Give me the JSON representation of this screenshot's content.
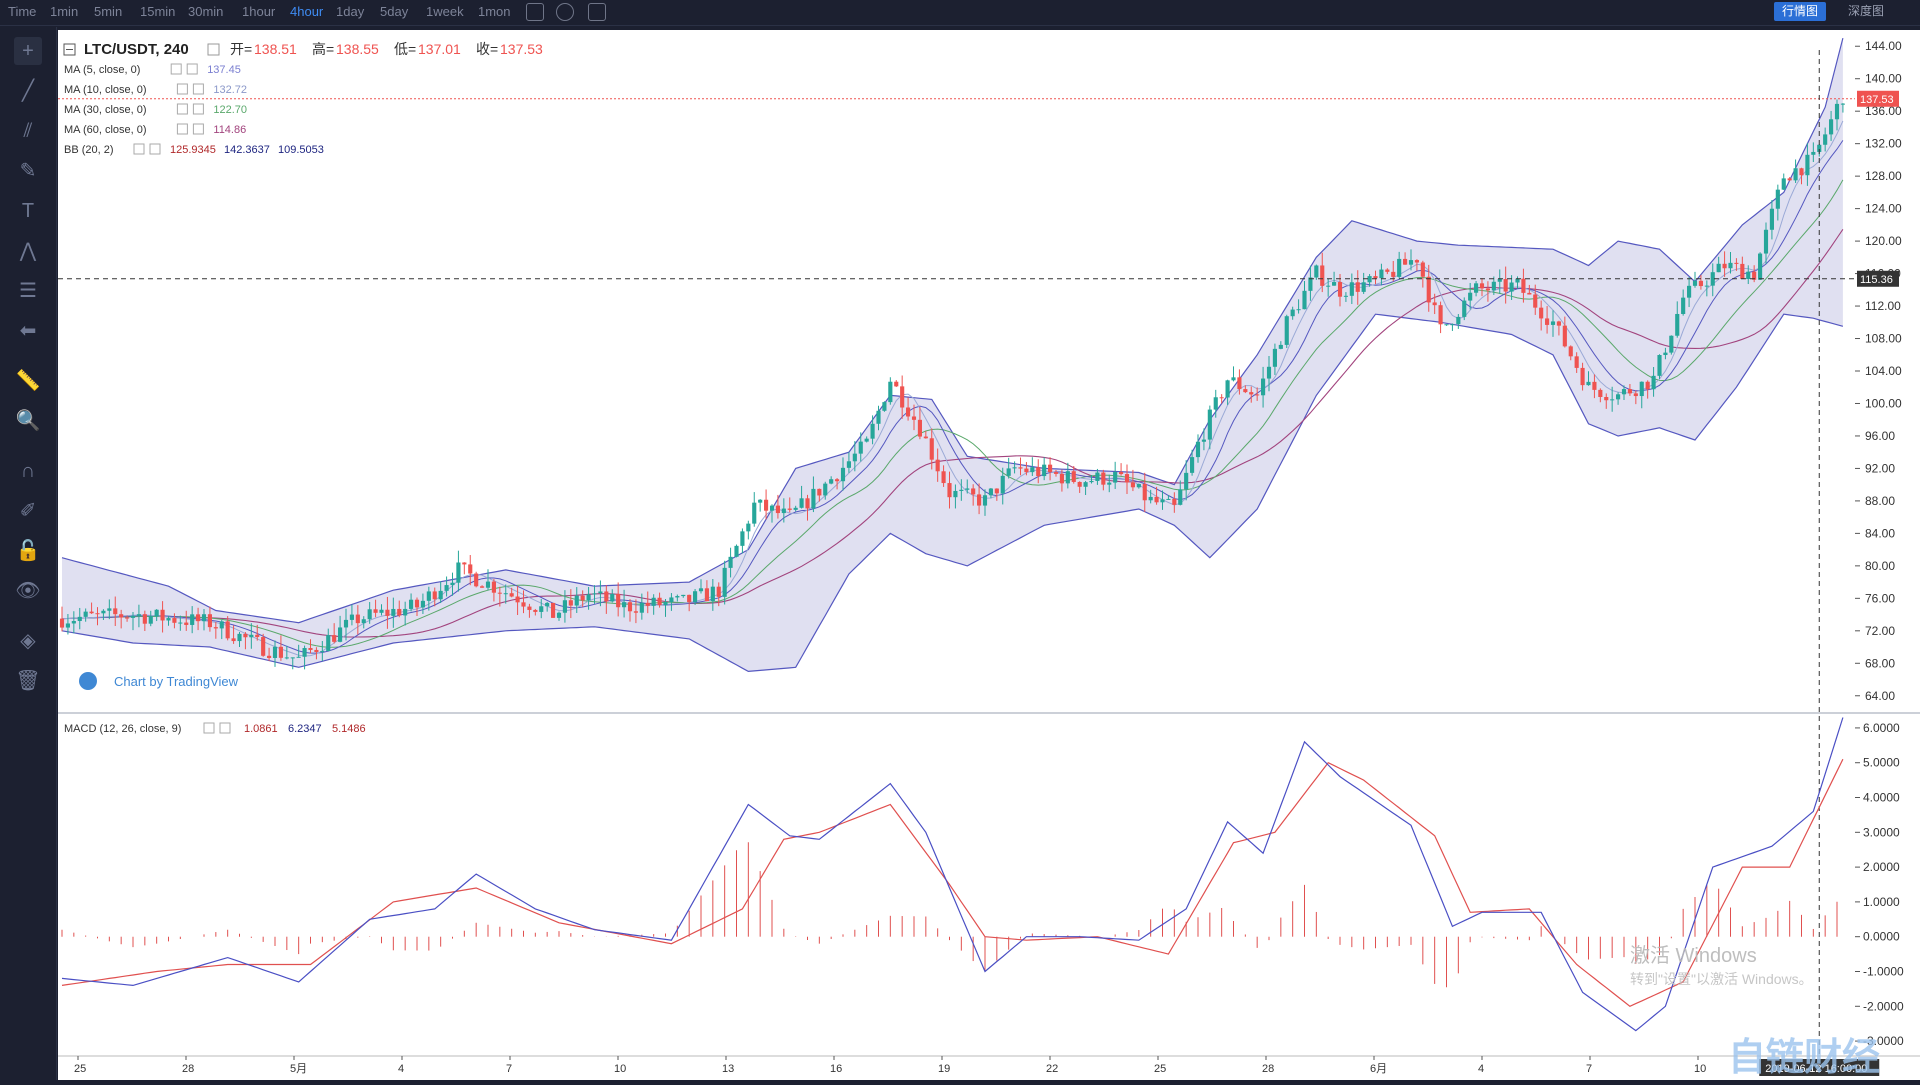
{
  "topbar": {
    "timeframes": [
      "Time",
      "1min",
      "5min",
      "15min",
      "30min",
      "1hour",
      "4hour",
      "1day",
      "5day",
      "1week",
      "1mon"
    ],
    "active_timeframe": "4hour",
    "tabs": [
      "行情图",
      "深度图"
    ],
    "active_tab": "行情图"
  },
  "sidebar": {
    "tools": [
      "crosshair-icon",
      "trend-line-icon",
      "fork-icon",
      "brush-icon",
      "text-icon",
      "pattern-icon",
      "fib-icon",
      "back-arrow-icon",
      "ruler-icon",
      "zoom-icon",
      "magnet-icon",
      "lock-draw-icon",
      "unlock-icon",
      "eye-icon",
      "layers-icon",
      "trash-icon"
    ]
  },
  "legend": {
    "symbol": "LTC/USDT, 240",
    "ohlc": [
      {
        "label": "开=",
        "value": "138.51"
      },
      {
        "label": "高=",
        "value": "138.55"
      },
      {
        "label": "低=",
        "value": "137.01"
      },
      {
        "label": "收=",
        "value": "137.53"
      }
    ],
    "indicators": [
      {
        "name": "MA (5, close, 0)",
        "values": [
          "137.45"
        ],
        "colors": [
          "#7b7fd1"
        ]
      },
      {
        "name": "MA (10, close, 0)",
        "values": [
          "132.72"
        ],
        "colors": [
          "#8b98c9"
        ]
      },
      {
        "name": "MA (30, close, 0)",
        "values": [
          "122.70"
        ],
        "colors": [
          "#5aa86b"
        ]
      },
      {
        "name": "MA (60, close, 0)",
        "values": [
          "114.86"
        ],
        "colors": [
          "#a2447e"
        ]
      },
      {
        "name": "BB (20, 2)",
        "values": [
          "125.9345",
          "142.3637",
          "109.5053"
        ],
        "colors": [
          "#b0282a",
          "#1e2580",
          "#1e2580"
        ]
      }
    ],
    "macd_name": "MACD (12, 26, close, 9)",
    "macd_values": [
      "1.0861",
      "6.2347",
      "5.1486"
    ],
    "macd_colors": [
      "#b0282a",
      "#1e2580",
      "#b0282a"
    ]
  },
  "watermark": "Chart by TradingView",
  "win_watermark": [
    "激活 Windows",
    "转到\"设置\"以激活 Windows。"
  ],
  "brand_watermark": "自链财经",
  "colors": {
    "up": "#26a69a",
    "down": "#ef5350",
    "bb_fill": "#d8d8ee",
    "bb_line": "#5558c0",
    "ma5": "#7b7fd1",
    "ma10": "#9aa9d6",
    "ma30": "#5aa86b",
    "ma60": "#a2447e",
    "macd_line": "#4a4fc4",
    "signal_line": "#e0504f",
    "hist": "#e0504f"
  },
  "chart_data": {
    "type": "candlestick",
    "title": "LTC/USDT, 240",
    "price_axis": {
      "ticks": [
        "64.00",
        "68.00",
        "72.00",
        "76.00",
        "80.00",
        "84.00",
        "88.00",
        "92.00",
        "96.00",
        "100.00",
        "104.00",
        "108.00",
        "112.00",
        "116.00",
        "120.00",
        "124.00",
        "128.00",
        "132.00",
        "136.00",
        "140.00",
        "144.00"
      ],
      "ylim": [
        62.0,
        146.0
      ],
      "last_price": "137.53",
      "crosshair_price": "115.36"
    },
    "macd_axis": {
      "ticks": [
        "-3.0000",
        "-2.0000",
        "-1.0000",
        "0.0000",
        "1.0000",
        "2.0000",
        "3.0000",
        "4.0000",
        "5.0000",
        "6.0000"
      ],
      "ylim": [
        -3.4,
        6.4
      ]
    },
    "time_axis": {
      "labels": [
        "25",
        "28",
        "5月",
        "4",
        "7",
        "10",
        "13",
        "16",
        "19",
        "22",
        "25",
        "28",
        "6月",
        "4",
        "7",
        "10"
      ],
      "crosshair_time": "2019-06-12 16:00:00",
      "total_bars": 291
    },
    "price_path": [
      [
        0,
        73.5
      ],
      [
        12,
        74.0
      ],
      [
        25,
        73.0
      ],
      [
        34,
        70.0
      ],
      [
        40,
        68.5
      ],
      [
        45,
        71.0
      ],
      [
        50,
        73.5
      ],
      [
        60,
        75.0
      ],
      [
        67,
        79.5
      ],
      [
        73,
        77.5
      ],
      [
        83,
        74.0
      ],
      [
        89,
        76.5
      ],
      [
        95,
        75.0
      ],
      [
        105,
        75.5
      ],
      [
        111,
        77.0
      ],
      [
        117,
        87.5
      ],
      [
        123,
        86.0
      ],
      [
        129,
        90.0
      ],
      [
        136,
        95.0
      ],
      [
        140,
        103.0
      ],
      [
        145,
        97.0
      ],
      [
        150,
        89.0
      ],
      [
        156,
        88.0
      ],
      [
        161,
        92.0
      ],
      [
        166,
        91.5
      ],
      [
        172,
        90.5
      ],
      [
        178,
        91.0
      ],
      [
        184,
        88.0
      ],
      [
        188,
        87.0
      ],
      [
        192,
        95.0
      ],
      [
        197,
        103.0
      ],
      [
        202,
        101.0
      ],
      [
        207,
        110.0
      ],
      [
        212,
        116.0
      ],
      [
        216,
        114.0
      ],
      [
        222,
        115.0
      ],
      [
        229,
        118.0
      ],
      [
        233,
        109.0
      ],
      [
        239,
        114.0
      ],
      [
        246,
        114.5
      ],
      [
        252,
        110.0
      ],
      [
        258,
        102.0
      ],
      [
        263,
        101.0
      ],
      [
        269,
        103.0
      ],
      [
        274,
        113.0
      ],
      [
        281,
        117.0
      ],
      [
        286,
        116.0
      ],
      [
        291,
        128.0
      ],
      [
        296,
        130.0
      ],
      [
        301,
        138.0
      ]
    ],
    "bollinger": {
      "upper": [
        [
          0,
          81.0
        ],
        [
          18,
          77.5
        ],
        [
          26,
          74.5
        ],
        [
          40,
          73.0
        ],
        [
          56,
          77.0
        ],
        [
          75,
          79.5
        ],
        [
          90,
          77.5
        ],
        [
          106,
          78.0
        ],
        [
          116,
          82.0
        ],
        [
          124,
          92.0
        ],
        [
          133,
          94.0
        ],
        [
          140,
          101.0
        ],
        [
          147,
          100.5
        ],
        [
          153,
          93.5
        ],
        [
          166,
          92.0
        ],
        [
          182,
          91.5
        ],
        [
          188,
          90.0
        ],
        [
          194,
          98.0
        ],
        [
          202,
          106.0
        ],
        [
          212,
          118.0
        ],
        [
          218,
          122.5
        ],
        [
          229,
          120.0
        ],
        [
          236,
          119.5
        ],
        [
          252,
          119.0
        ],
        [
          258,
          117.0
        ],
        [
          263,
          120.0
        ],
        [
          270,
          119.0
        ],
        [
          276,
          115.0
        ],
        [
          284,
          122.0
        ],
        [
          291,
          126.0
        ],
        [
          298,
          136.5
        ],
        [
          301,
          145.0
        ]
      ],
      "lower": [
        [
          0,
          72.0
        ],
        [
          12,
          70.5
        ],
        [
          25,
          70.0
        ],
        [
          40,
          67.5
        ],
        [
          56,
          70.5
        ],
        [
          75,
          72.0
        ],
        [
          90,
          72.5
        ],
        [
          106,
          71.0
        ],
        [
          116,
          67.0
        ],
        [
          124,
          67.5
        ],
        [
          133,
          79.0
        ],
        [
          140,
          84.0
        ],
        [
          146,
          81.5
        ],
        [
          153,
          80.0
        ],
        [
          166,
          85.0
        ],
        [
          182,
          87.0
        ],
        [
          188,
          85.0
        ],
        [
          194,
          81.0
        ],
        [
          202,
          87.0
        ],
        [
          212,
          101.0
        ],
        [
          222,
          111.0
        ],
        [
          233,
          110.0
        ],
        [
          245,
          108.5
        ],
        [
          252,
          106.0
        ],
        [
          258,
          97.5
        ],
        [
          263,
          96.0
        ],
        [
          270,
          97.0
        ],
        [
          276,
          95.5
        ],
        [
          283,
          102.0
        ],
        [
          291,
          111.0
        ],
        [
          296,
          110.5
        ],
        [
          301,
          109.5
        ]
      ]
    },
    "macd": {
      "macd_line": [
        [
          0,
          -1.2
        ],
        [
          12,
          -1.4
        ],
        [
          28,
          -0.6
        ],
        [
          40,
          -1.3
        ],
        [
          52,
          0.5
        ],
        [
          63,
          0.8
        ],
        [
          70,
          1.8
        ],
        [
          80,
          0.8
        ],
        [
          90,
          0.2
        ],
        [
          103,
          -0.1
        ],
        [
          116,
          3.8
        ],
        [
          123,
          2.9
        ],
        [
          128,
          2.8
        ],
        [
          140,
          4.4
        ],
        [
          146,
          3.0
        ],
        [
          156,
          -1.0
        ],
        [
          163,
          0.0
        ],
        [
          172,
          0.0
        ],
        [
          182,
          -0.1
        ],
        [
          190,
          0.8
        ],
        [
          197,
          3.3
        ],
        [
          203,
          2.4
        ],
        [
          210,
          5.6
        ],
        [
          216,
          4.6
        ],
        [
          228,
          3.2
        ],
        [
          235,
          0.3
        ],
        [
          240,
          0.7
        ],
        [
          250,
          0.7
        ],
        [
          257,
          -1.6
        ],
        [
          266,
          -2.7
        ],
        [
          271,
          -2.0
        ],
        [
          279,
          2.0
        ],
        [
          289,
          2.6
        ],
        [
          296,
          3.6
        ],
        [
          301,
          6.3
        ]
      ],
      "signal_line": [
        [
          0,
          -1.4
        ],
        [
          16,
          -1.0
        ],
        [
          28,
          -0.8
        ],
        [
          42,
          -0.8
        ],
        [
          56,
          1.0
        ],
        [
          70,
          1.4
        ],
        [
          84,
          0.4
        ],
        [
          103,
          -0.2
        ],
        [
          115,
          0.8
        ],
        [
          122,
          2.8
        ],
        [
          128,
          3.0
        ],
        [
          140,
          3.8
        ],
        [
          150,
          1.5
        ],
        [
          156,
          0.0
        ],
        [
          163,
          -0.1
        ],
        [
          175,
          0.0
        ],
        [
          187,
          -0.5
        ],
        [
          198,
          2.7
        ],
        [
          205,
          3.0
        ],
        [
          214,
          5.0
        ],
        [
          220,
          4.5
        ],
        [
          232,
          2.9
        ],
        [
          238,
          0.7
        ],
        [
          248,
          0.8
        ],
        [
          256,
          -0.8
        ],
        [
          265,
          -2.0
        ],
        [
          274,
          -1.3
        ],
        [
          284,
          2.0
        ],
        [
          292,
          2.0
        ],
        [
          301,
          5.1
        ]
      ],
      "histogram_last": 1.0861
    }
  }
}
